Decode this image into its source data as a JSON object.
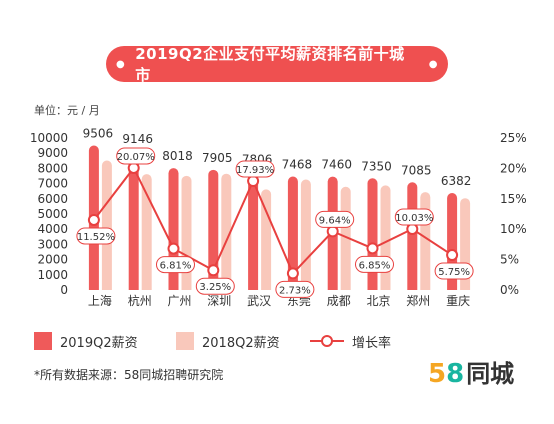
{
  "title": "2019Q2企业支付平均薪资排名前十城市",
  "unit_label": "单位：元 / 月",
  "legend": {
    "series1": "2019Q2薪资",
    "series2": "2018Q2薪资",
    "series3": "增长率"
  },
  "source": "*所有数据来源：58同城招聘研究院",
  "logo": {
    "digit1": "5",
    "digit2": "8",
    "text": "同城"
  },
  "colors": {
    "bar2019": "#ef5a5a",
    "bar2018": "#f9c8bb",
    "line": "#e8403f",
    "title_bg": "#ef5050"
  },
  "chart_data": {
    "type": "bar",
    "categories": [
      "上海",
      "杭州",
      "广州",
      "深圳",
      "武汉",
      "东莞",
      "成都",
      "北京",
      "郑州",
      "重庆"
    ],
    "series": [
      {
        "name": "2019Q2薪资",
        "values": [
          9506,
          9146,
          8018,
          7905,
          7806,
          7468,
          7460,
          7350,
          7085,
          6382
        ],
        "labels": [
          "9506",
          "9146",
          "8018",
          "7905",
          "7806",
          "7468",
          "7460",
          "7350",
          "7085",
          "6382"
        ]
      },
      {
        "name": "2018Q2薪资",
        "values": [
          8520,
          7620,
          7510,
          7650,
          6620,
          7270,
          6790,
          6880,
          6440,
          6040
        ]
      },
      {
        "name": "增长率",
        "type": "line",
        "axis": "right",
        "values": [
          11.52,
          20.07,
          6.81,
          3.25,
          17.93,
          2.73,
          9.64,
          6.85,
          10.03,
          5.75
        ],
        "labels": [
          "11.52%",
          "20.07%",
          "6.81%",
          "3.25%",
          "17.93%",
          "2.73%",
          "9.64%",
          "6.85%",
          "10.03%",
          "5.75%"
        ]
      }
    ],
    "y_left": {
      "ylim": [
        0,
        10000
      ],
      "ticks": [
        "0",
        "1000",
        "2000",
        "3000",
        "4000",
        "5000",
        "6000",
        "7000",
        "8000",
        "9000",
        "10000"
      ]
    },
    "y_right": {
      "ylim": [
        0,
        25
      ],
      "ticks": [
        "0%",
        "5%",
        "10%",
        "15%",
        "20%",
        "25%"
      ]
    },
    "grid": false,
    "legend_position": "bottom"
  }
}
